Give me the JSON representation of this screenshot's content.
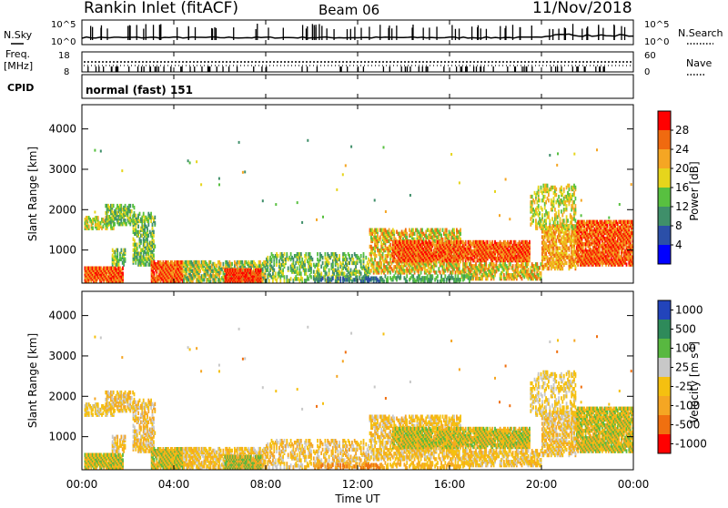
{
  "header": {
    "station": "Rankin Inlet (fitACF)",
    "beam": "Beam 06",
    "date": "11/Nov/2018",
    "mode": "normal (fast) 151"
  },
  "left_labels": {
    "nsky": "N.Sky",
    "freq_line1": "Freq.",
    "freq_line2": "[MHz]",
    "cpid": "CPID"
  },
  "right_labels": {
    "nsearch": "N.Search",
    "nave": "Nave"
  },
  "chart_data": [
    {
      "type": "line",
      "panel": "noise",
      "left_ticks": [
        "10^5",
        "10^0"
      ],
      "right_ticks": [
        "10^5",
        "10^0"
      ],
      "log_scale": true
    },
    {
      "type": "line",
      "panel": "frequency",
      "left_ticks": [
        "18",
        "8"
      ],
      "right_ticks": [
        "60",
        "0"
      ]
    },
    {
      "type": "heatmap",
      "panel": "power",
      "ylabel": "Slant Range [km]",
      "yticks": [
        1000,
        2000,
        3000,
        4000
      ],
      "ylim": [
        180,
        4600
      ],
      "colorbar_label": "Power [dB]",
      "colorbar_ticks": [
        "4",
        "8",
        "12",
        "16",
        "20",
        "24",
        "28"
      ],
      "colors": [
        "#0000ff",
        "#2b4fa8",
        "#3f8f6a",
        "#58c040",
        "#e6d51c",
        "#f5a623",
        "#f06a10",
        "#ff0000"
      ]
    },
    {
      "type": "heatmap",
      "panel": "velocity",
      "ylabel": "Slant Range [km]",
      "yticks": [
        1000,
        2000,
        3000,
        4000
      ],
      "ylim": [
        180,
        4600
      ],
      "colorbar_label": "Velocity [m s^-1]",
      "colorbar_ticks": [
        "1000",
        "500",
        "100",
        "25",
        "-25",
        "-100",
        "-500",
        "-1000"
      ],
      "colors": [
        "#2244bb",
        "#2e8a5a",
        "#58b840",
        "#c8c8c8",
        "#f5c010",
        "#f5a623",
        "#f07010",
        "#ff0000"
      ]
    }
  ],
  "x_axis": {
    "ticks": [
      "00:00",
      "04:00",
      "08:00",
      "12:00",
      "16:00",
      "20:00",
      "00:00"
    ],
    "label": "Time UT"
  }
}
